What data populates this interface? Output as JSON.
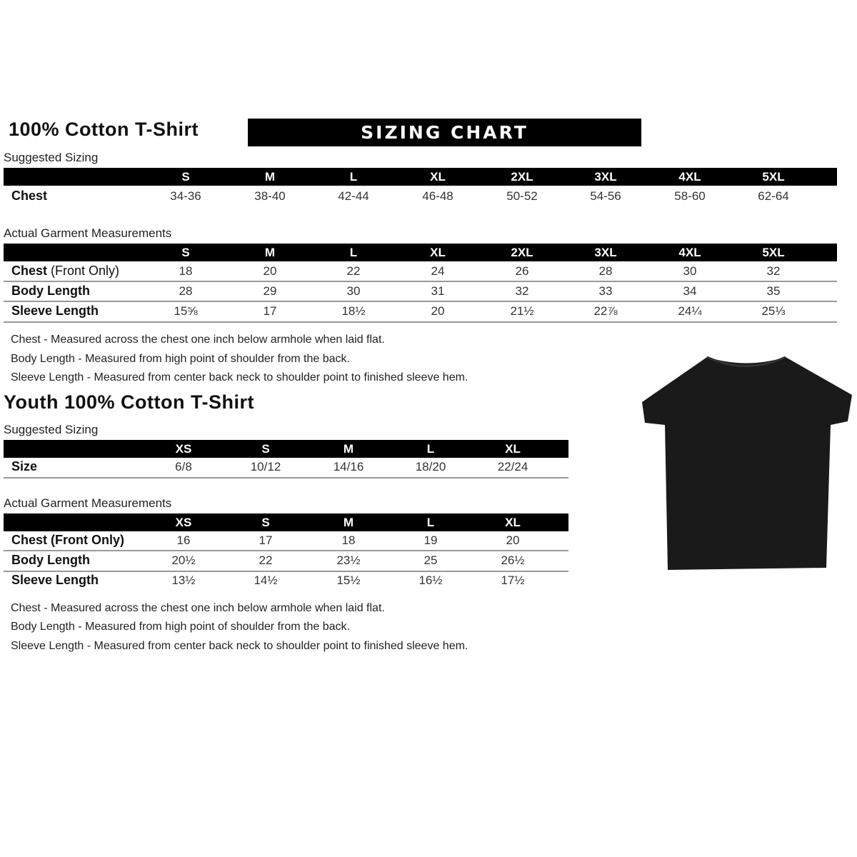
{
  "adult": {
    "title": "100% Cotton T-Shirt",
    "banner": "SIZING CHART",
    "suggested_label": "Suggested Sizing",
    "sizes": [
      "S",
      "M",
      "L",
      "XL",
      "2XL",
      "3XL",
      "4XL",
      "5XL"
    ],
    "suggested_rows": [
      {
        "label": "Chest",
        "values": [
          "34-36",
          "38-40",
          "42-44",
          "46-48",
          "50-52",
          "54-56",
          "58-60",
          "62-64"
        ]
      }
    ],
    "actual_label": "Actual Garment Measurements",
    "actual_rows": [
      {
        "label": "Chest",
        "label_suffix": " (Front Only)",
        "values": [
          "18",
          "20",
          "22",
          "24",
          "26",
          "28",
          "30",
          "32"
        ]
      },
      {
        "label": "Body Length",
        "values": [
          "28",
          "29",
          "30",
          "31",
          "32",
          "33",
          "34",
          "35"
        ]
      },
      {
        "label": "Sleeve Length",
        "values": [
          "15⅝",
          "17",
          "18½",
          "20",
          "21½",
          "22⅞",
          "24¼",
          "25⅓"
        ]
      }
    ],
    "notes": [
      "Chest - Measured across the chest one inch below armhole when laid flat.",
      "Body Length - Measured from high point of shoulder from the back.",
      "Sleeve Length - Measured from center back neck to shoulder point to finished sleeve hem."
    ]
  },
  "youth": {
    "title": "Youth 100% Cotton T-Shirt",
    "suggested_label": "Suggested Sizing",
    "sizes": [
      "XS",
      "S",
      "M",
      "L",
      "XL"
    ],
    "suggested_rows": [
      {
        "label": "Size",
        "values": [
          "6/8",
          "10/12",
          "14/16",
          "18/20",
          "22/24"
        ]
      }
    ],
    "actual_label": "Actual Garment Measurements",
    "actual_rows": [
      {
        "label": "Chest (Front Only)",
        "values": [
          "16",
          "17",
          "18",
          "19",
          "20"
        ]
      },
      {
        "label": "Body Length",
        "values": [
          "20½",
          "22",
          "23½",
          "25",
          "26½"
        ]
      },
      {
        "label": "Sleeve Length",
        "values": [
          "13½",
          "14½",
          "15½",
          "16½",
          "17½"
        ]
      }
    ],
    "notes": [
      "Chest - Measured across the chest one inch below armhole when laid flat.",
      "Body Length - Measured from high point of shoulder from the back.",
      "Sleeve Length - Measured from center back neck to shoulder point to finished sleeve hem."
    ]
  },
  "colors": {
    "bar": "#000000",
    "shirt": "#1a1a1a"
  }
}
